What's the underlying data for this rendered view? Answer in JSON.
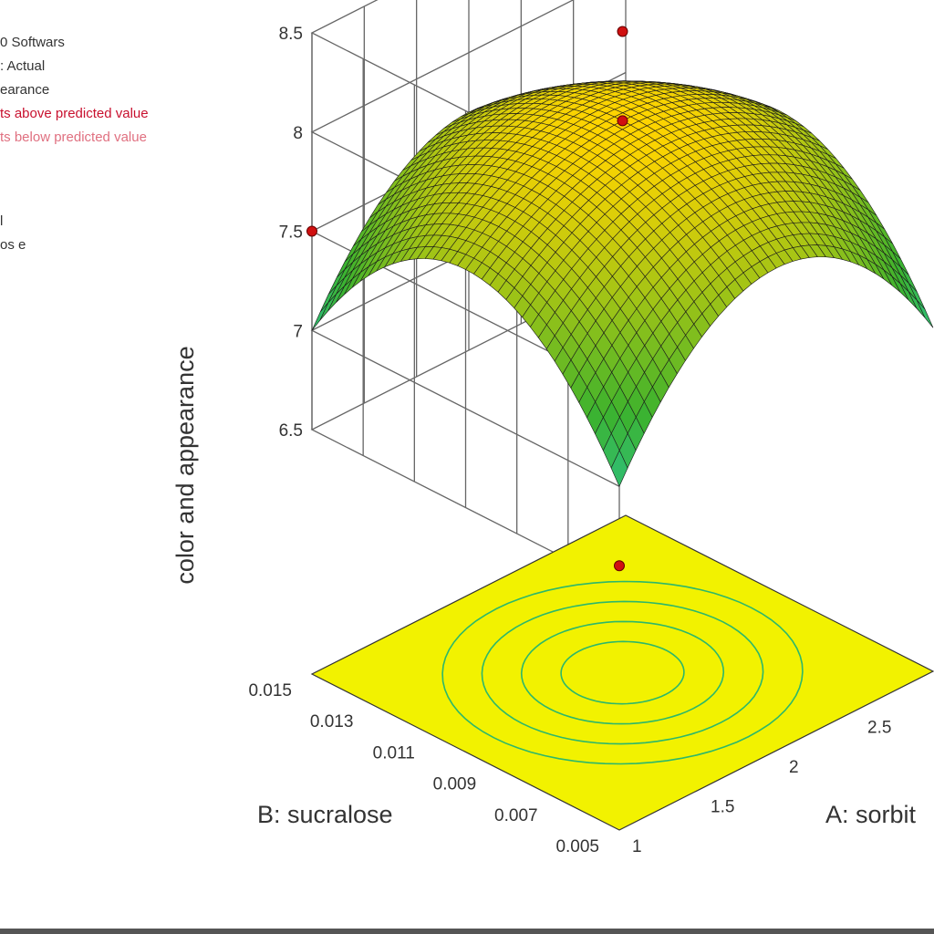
{
  "legend": {
    "lines": [
      {
        "text": "0 Softwars",
        "tone": "normal"
      },
      {
        "text": ": Actual",
        "tone": "normal"
      },
      {
        "text": "earance",
        "tone": "normal"
      },
      {
        "text": "ts above predicted value",
        "tone": "above"
      },
      {
        "text": "ts below predicted value",
        "tone": "below"
      }
    ],
    "lines2": [
      {
        "text": "l",
        "tone": "normal"
      },
      {
        "text": "os e",
        "tone": "normal"
      }
    ]
  },
  "chart_data": {
    "type": "surface3d",
    "title": "",
    "zlabel": "color and appearance",
    "xlabel": "A: sorbit",
    "ylabel": "B: sucralose",
    "zlim": [
      6.5,
      8.5
    ],
    "z_ticks": [
      "6.5",
      "7",
      "7.5",
      "8",
      "8.5"
    ],
    "x_ticks": [
      "1",
      "1.5",
      "2",
      "2.5"
    ],
    "y_ticks": [
      "0.005",
      "0.007",
      "0.009",
      "0.011",
      "0.013",
      "0.015"
    ],
    "xlim": [
      1,
      3
    ],
    "ylim": [
      0.005,
      0.015
    ],
    "surface_model": {
      "peak_z": 8.05,
      "corner_z": 6.65,
      "side_z": 7.35
    },
    "design_points": [
      {
        "x": 2,
        "y": 0.01,
        "z": 8.5
      },
      {
        "x": 2,
        "y": 0.01,
        "z": 8.05
      },
      {
        "x": 1,
        "y": 0.015,
        "z": 7.5
      },
      {
        "x": 1,
        "y": 0.005,
        "z": 6.6
      }
    ],
    "colors": {
      "surface_high": "#ffd400",
      "surface_mid": "#3cb22e",
      "surface_low": "#1fd0d8",
      "floor": "#f2f200",
      "contour": "#2cb86a",
      "point": "#d01010"
    },
    "grid": true
  }
}
